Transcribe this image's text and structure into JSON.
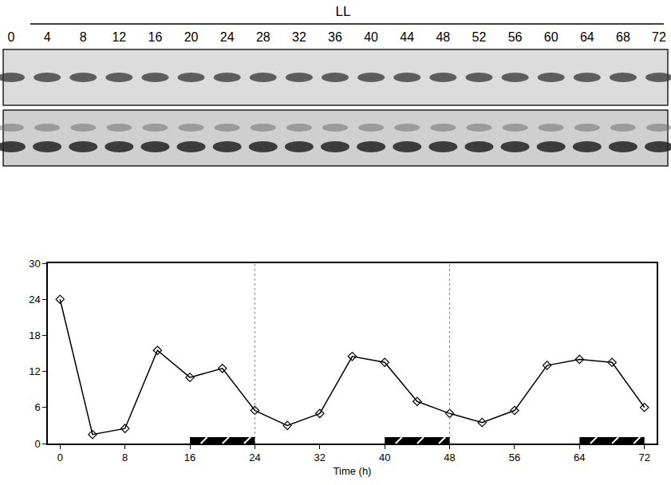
{
  "blot": {
    "condition": "LL",
    "lanes": [
      "0",
      "4",
      "8",
      "12",
      "16",
      "20",
      "24",
      "28",
      "32",
      "36",
      "40",
      "44",
      "48",
      "52",
      "56",
      "60",
      "64",
      "68",
      "72"
    ]
  },
  "chart_data": {
    "type": "line",
    "x": [
      0,
      4,
      8,
      12,
      16,
      20,
      24,
      28,
      32,
      36,
      40,
      44,
      48,
      52,
      56,
      60,
      64,
      68,
      72
    ],
    "values": [
      24,
      1.5,
      2.5,
      15.5,
      11,
      12.5,
      5.5,
      3,
      5,
      14.5,
      13.5,
      7,
      5,
      3.5,
      5.5,
      13,
      14,
      13.5,
      6
    ],
    "xlim": [
      -1.5,
      73.5
    ],
    "xticks": [
      0,
      8,
      16,
      24,
      32,
      40,
      48,
      56,
      64,
      72
    ],
    "ylim": [
      0,
      30
    ],
    "yticks": [
      0,
      6,
      12,
      18,
      24,
      30
    ],
    "xlabel": "Time (h)",
    "color": "#000000",
    "marker": "diamond-open",
    "line_style": "solid",
    "grid": false,
    "vlines": [
      24,
      48
    ],
    "night_bars": [
      [
        16,
        24
      ],
      [
        40,
        48
      ],
      [
        64,
        72
      ]
    ]
  }
}
